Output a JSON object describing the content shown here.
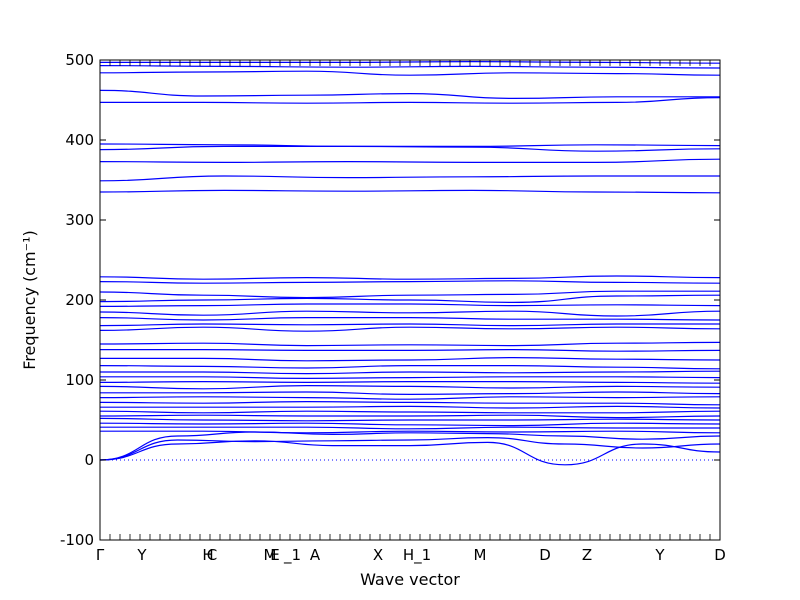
{
  "chart_data": {
    "type": "line",
    "title": "",
    "xlabel": "Wave vector",
    "ylabel": "Frequency ($cm^{-1}$)",
    "ylabel_rendered": "Frequency (cm⁻¹)",
    "ylim": [
      -100,
      500
    ],
    "yticks": [
      -100,
      0,
      100,
      200,
      300,
      400,
      500
    ],
    "xlim": [
      0,
      6.2
    ],
    "high_symmetry_points": [
      {
        "label": "Γ",
        "x": 0.0
      },
      {
        "label": "Y",
        "x": 0.42
      },
      {
        "label": "H",
        "x": 1.08
      },
      {
        "label": "C",
        "x": 1.12
      },
      {
        "label": "M",
        "x": 1.7
      },
      {
        "label": "E",
        "x": 1.75
      },
      {
        "label": "_1",
        "x": 1.84
      },
      {
        "label": "A",
        "x": 2.15
      },
      {
        "label": "X",
        "x": 2.78
      },
      {
        "label": "H_1",
        "x": 3.17
      },
      {
        "label": "M",
        "x": 3.8
      },
      {
        "label": "D",
        "x": 4.45
      },
      {
        "label": "Z",
        "x": 4.87
      },
      {
        "label": "Y",
        "x": 5.6
      },
      {
        "label": "D",
        "x": 6.2
      }
    ],
    "zero_line": {
      "y": 0,
      "style": "dotted"
    },
    "line_color": "#0000ff",
    "series": [
      {
        "values": [
          497,
          497,
          497,
          498,
          497,
          496
        ]
      },
      {
        "values": [
          493,
          492,
          491,
          492,
          491,
          490
        ]
      },
      {
        "values": [
          484,
          485,
          486,
          481,
          484,
          483,
          481
        ]
      },
      {
        "values": [
          462,
          455,
          456,
          458,
          452,
          454,
          454
        ]
      },
      {
        "values": [
          447,
          447,
          446,
          447,
          446,
          447,
          453
        ]
      },
      {
        "values": [
          395,
          394,
          392,
          392,
          394,
          393
        ]
      },
      {
        "values": [
          388,
          392,
          392,
          391,
          386,
          389
        ]
      },
      {
        "values": [
          373,
          372,
          373,
          372,
          372,
          376
        ]
      },
      {
        "values": [
          349,
          355,
          353,
          354,
          355,
          355
        ]
      },
      {
        "values": [
          335,
          337,
          336,
          337,
          335,
          334
        ]
      },
      {
        "values": [
          229,
          226,
          228,
          226,
          227,
          230,
          228
        ]
      },
      {
        "values": [
          223,
          221,
          222,
          223,
          224,
          222,
          221
        ]
      },
      {
        "values": [
          210,
          206,
          203,
          206,
          207,
          211,
          211
        ]
      },
      {
        "values": [
          198,
          200,
          202,
          200,
          197,
          205,
          206
        ]
      },
      {
        "values": [
          192,
          193,
          195,
          195,
          193,
          194,
          193
        ]
      },
      {
        "values": [
          185,
          181,
          186,
          184,
          186,
          180,
          186
        ]
      },
      {
        "values": [
          178,
          175,
          178,
          178,
          176,
          176,
          175
        ]
      },
      {
        "values": [
          168,
          170,
          169,
          170,
          168,
          170,
          170
        ]
      },
      {
        "values": [
          162,
          166,
          161,
          166,
          164,
          166,
          164
        ]
      },
      {
        "values": [
          145,
          146,
          143,
          144,
          143,
          146,
          147
        ]
      },
      {
        "values": [
          138,
          138,
          137,
          137,
          138,
          136,
          137
        ]
      },
      {
        "values": [
          127,
          127,
          124,
          125,
          128,
          126,
          125
        ]
      },
      {
        "values": [
          118,
          117,
          115,
          118,
          118,
          116,
          114
        ]
      },
      {
        "values": [
          110,
          110,
          108,
          110,
          109,
          110,
          111
        ]
      },
      {
        "values": [
          104,
          104,
          102,
          103,
          104,
          104,
          103
        ]
      },
      {
        "values": [
          97,
          98,
          97,
          98,
          98,
          97,
          96
        ]
      },
      {
        "values": [
          92,
          89,
          93,
          92,
          90,
          92,
          91
        ]
      },
      {
        "values": [
          84,
          84,
          85,
          82,
          83,
          85,
          83
        ]
      },
      {
        "values": [
          78,
          79,
          78,
          76,
          79,
          78,
          79
        ]
      },
      {
        "values": [
          72,
          71,
          73,
          72,
          71,
          71,
          69
        ]
      },
      {
        "values": [
          66,
          66,
          66,
          67,
          65,
          67,
          65
        ]
      },
      {
        "values": [
          61,
          59,
          61,
          60,
          59,
          59,
          61
        ]
      },
      {
        "values": [
          55,
          56,
          55,
          55,
          56,
          53,
          55
        ]
      },
      {
        "values": [
          52,
          50,
          49,
          50,
          50,
          51,
          50
        ]
      },
      {
        "values": [
          46,
          45,
          46,
          44,
          43,
          46,
          45
        ]
      },
      {
        "values": [
          41,
          41,
          41,
          39,
          41,
          40,
          40
        ]
      },
      {
        "values": [
          36,
          36,
          34,
          36,
          35,
          36,
          34
        ]
      },
      {
        "values": [
          0,
          25,
          23,
          24,
          25,
          28,
          20,
          15,
          20
        ]
      },
      {
        "values": [
          0,
          20,
          24,
          18,
          18,
          22,
          -6,
          20,
          10
        ]
      },
      {
        "values": [
          0,
          30,
          35,
          32,
          34,
          33,
          30,
          26,
          30
        ]
      }
    ]
  }
}
